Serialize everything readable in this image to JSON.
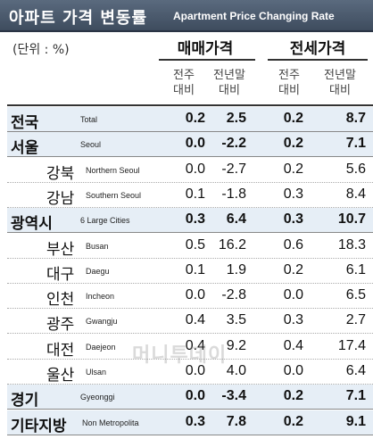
{
  "title": {
    "ko": "아파트 가격 변동률",
    "en": "Apartment Price Changing Rate"
  },
  "unit_label": "(단위 : %)",
  "groups": {
    "sale": "매매가격",
    "jeonse": "전세가격"
  },
  "subheads": {
    "sale_a": [
      "전주",
      "대비"
    ],
    "sale_b": [
      "전년말",
      "대비"
    ],
    "jeonse_a": [
      "전주",
      "대비"
    ],
    "jeonse_b": [
      "전년말",
      "대비"
    ]
  },
  "rows": [
    {
      "ko": "전국",
      "en": "Total",
      "major": true,
      "v": [
        "0.2",
        "2.5",
        "0.2",
        "8.7"
      ]
    },
    {
      "ko": "서울",
      "en": "Seoul",
      "major": true,
      "v": [
        "0.0",
        "-2.2",
        "0.2",
        "7.1"
      ]
    },
    {
      "ko": "강북",
      "en": "Northern Seoul",
      "major": false,
      "v": [
        "0.0",
        "-2.7",
        "0.2",
        "5.6"
      ]
    },
    {
      "ko": "강남",
      "en": "Southern Seoul",
      "major": false,
      "v": [
        "0.1",
        "-1.8",
        "0.3",
        "8.4"
      ]
    },
    {
      "ko": "광역시",
      "en": "6 Large Cities",
      "major": true,
      "v": [
        "0.3",
        "6.4",
        "0.3",
        "10.7"
      ]
    },
    {
      "ko": "부산",
      "en": "Busan",
      "major": false,
      "v": [
        "0.5",
        "16.2",
        "0.6",
        "18.3"
      ]
    },
    {
      "ko": "대구",
      "en": "Daegu",
      "major": false,
      "v": [
        "0.1",
        "1.9",
        "0.2",
        "6.1"
      ]
    },
    {
      "ko": "인천",
      "en": "Incheon",
      "major": false,
      "v": [
        "0.0",
        "-2.8",
        "0.0",
        "6.5"
      ]
    },
    {
      "ko": "광주",
      "en": "Gwangju",
      "major": false,
      "v": [
        "0.4",
        "3.5",
        "0.3",
        "2.7"
      ]
    },
    {
      "ko": "대전",
      "en": "Daejeon",
      "major": false,
      "v": [
        "0.4",
        "9.2",
        "0.4",
        "17.4"
      ]
    },
    {
      "ko": "울산",
      "en": "Ulsan",
      "major": false,
      "v": [
        "0.0",
        "4.0",
        "0.0",
        "6.4"
      ]
    },
    {
      "ko": "경기",
      "en": "Gyeonggi",
      "major": true,
      "v": [
        "0.0",
        "-3.4",
        "0.2",
        "7.1"
      ]
    },
    {
      "ko": "기타지방",
      "en": "Non Metropolita",
      "major": true,
      "v": [
        "0.3",
        "7.8",
        "0.2",
        "9.1"
      ]
    }
  ],
  "watermark": "머니투데이",
  "colors": {
    "title_bar": "#4a5a6e",
    "row_shade": "#e6eef6"
  }
}
